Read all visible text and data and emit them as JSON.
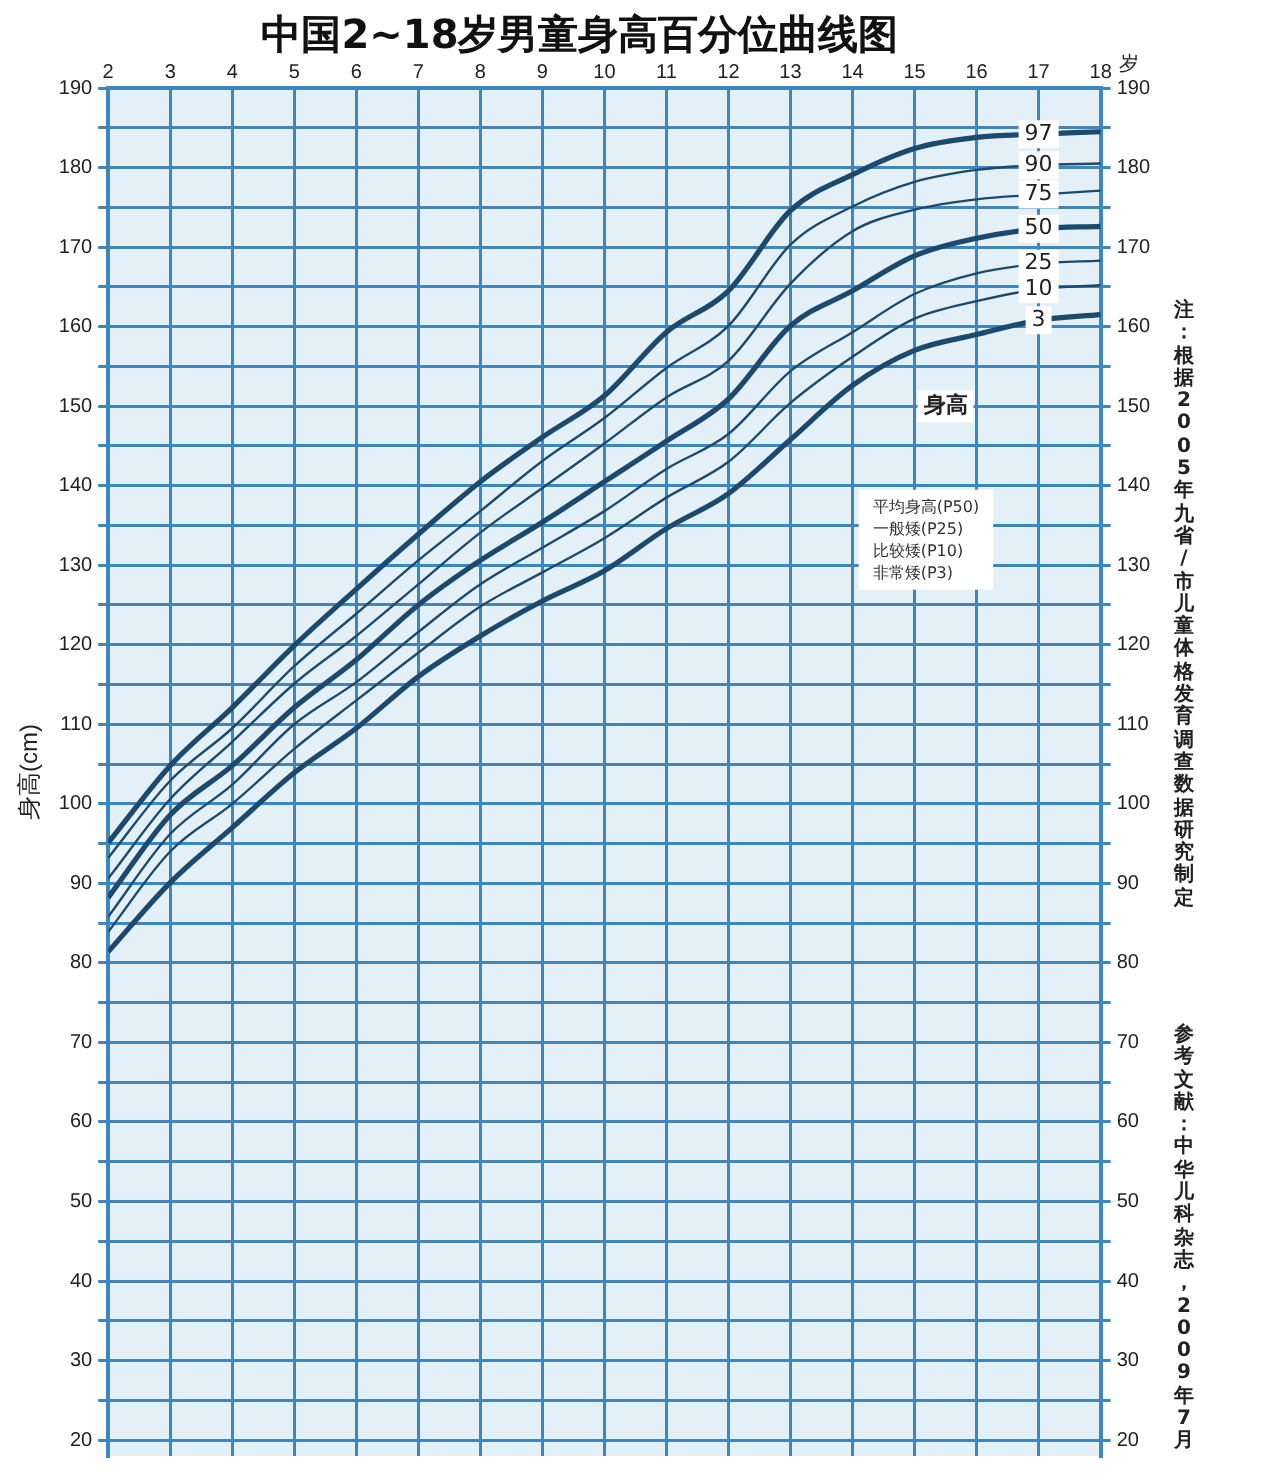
{
  "chart_data": {
    "type": "line",
    "title": "中国2~18岁男童身高百分位曲线图",
    "xlabel": "岁",
    "ylabel": "身高(cm)",
    "x": [
      2,
      3,
      4,
      5,
      6,
      7,
      8,
      9,
      10,
      11,
      12,
      13,
      14,
      15,
      16,
      17,
      18
    ],
    "xlim": [
      2,
      18
    ],
    "xticks": [
      2,
      3,
      4,
      5,
      6,
      7,
      8,
      9,
      10,
      11,
      12,
      13,
      14,
      15,
      16,
      17,
      18
    ],
    "ylim": [
      18,
      190
    ],
    "yticks": [
      20,
      {
        "value": 25,
        "label": null
      },
      30,
      {
        "value": 35,
        "label": null
      },
      40,
      {
        "value": 45,
        "label": null
      },
      50,
      {
        "value": 55,
        "label": null
      },
      60,
      {
        "value": 65,
        "label": null
      },
      70,
      {
        "value": 75,
        "label": null
      },
      80,
      {
        "value": 85,
        "label": null
      },
      90,
      {
        "value": 95,
        "label": null
      },
      100,
      {
        "value": 105,
        "label": null
      },
      110,
      {
        "value": 115,
        "label": null
      },
      120,
      {
        "value": 125,
        "label": null
      },
      130,
      {
        "value": 135,
        "label": null
      },
      140,
      {
        "value": 145,
        "label": null
      },
      150,
      {
        "value": 155,
        "label": null
      },
      160,
      {
        "value": 165,
        "label": null
      },
      170,
      {
        "value": 175,
        "label": null
      },
      180,
      {
        "value": 185,
        "label": null
      },
      190
    ],
    "y2lim": [
      18,
      190
    ],
    "y2ticks": [
      20,
      {
        "value": 25,
        "label": null
      },
      30,
      {
        "value": 35,
        "label": null
      },
      40,
      {
        "value": 45,
        "label": null
      },
      50,
      {
        "value": 55,
        "label": null
      },
      60,
      {
        "value": 65,
        "label": null
      },
      70,
      {
        "value": 75,
        "label": null
      },
      80,
      {
        "value": 85,
        "label": null
      },
      90,
      {
        "value": 95,
        "label": null
      },
      100,
      {
        "value": 105,
        "label": null
      },
      110,
      {
        "value": 115,
        "label": null
      },
      120,
      {
        "value": 125,
        "label": null
      },
      130,
      {
        "value": 135,
        "label": null
      },
      140,
      {
        "value": 145,
        "label": null
      },
      150,
      {
        "value": 155,
        "label": null
      },
      160,
      {
        "value": 165,
        "label": null
      },
      170,
      {
        "value": 175,
        "label": null
      },
      180,
      {
        "value": 185,
        "label": null
      },
      190
    ],
    "grid": true,
    "legend": false,
    "marker": "none",
    "line_style": "solid",
    "series": [
      {
        "name": "97",
        "color": "#1c4a6e",
        "values": [
          95.1,
          104.8,
          112.1,
          119.9,
          127.0,
          133.9,
          140.5,
          146.1,
          151.3,
          159.3,
          164.5,
          174.6,
          179.1,
          182.4,
          183.8,
          184.2,
          184.5
        ]
      },
      {
        "name": "90",
        "color": "#1c4a6e",
        "values": [
          93.2,
          102.9,
          109.5,
          117.3,
          123.9,
          130.6,
          136.8,
          143.1,
          148.5,
          154.8,
          160.1,
          170.3,
          175.1,
          178.2,
          179.7,
          180.3,
          180.5
        ]
      },
      {
        "name": "75",
        "color": "#1c4a6e",
        "values": [
          90.6,
          100.6,
          107.8,
          115.1,
          121.1,
          127.6,
          134.1,
          139.7,
          145.3,
          151.1,
          155.7,
          165.4,
          172.0,
          174.7,
          176.0,
          176.6,
          177.1
        ]
      },
      {
        "name": "50",
        "color": "#1c4a6e",
        "values": [
          88.2,
          98.6,
          104.8,
          112.1,
          118.1,
          125.0,
          130.6,
          135.4,
          140.5,
          145.6,
          150.9,
          160.1,
          164.5,
          168.9,
          171.1,
          172.3,
          172.6
        ]
      },
      {
        "name": "25",
        "color": "#1c4a6e",
        "values": [
          85.8,
          96.2,
          102.4,
          110.0,
          115.3,
          121.6,
          127.6,
          132.2,
          136.8,
          142.1,
          146.5,
          154.4,
          159.3,
          164.1,
          166.7,
          167.9,
          168.3
        ]
      },
      {
        "name": "10",
        "color": "#1c4a6e",
        "values": [
          83.9,
          94.0,
          100.0,
          106.9,
          113.0,
          119.0,
          124.8,
          129.1,
          133.4,
          138.5,
          143.0,
          150.4,
          156.2,
          161.0,
          163.2,
          164.7,
          165.2
        ]
      },
      {
        "name": "3",
        "color": "#1c4a6e",
        "values": [
          81.4,
          90.1,
          97.0,
          103.9,
          109.5,
          116.0,
          121.1,
          125.5,
          129.3,
          134.6,
          139.0,
          145.8,
          152.6,
          157.0,
          159.0,
          160.8,
          161.5
        ]
      }
    ],
    "annotations": [
      {
        "text": "身高",
        "x": 15.5,
        "y": 150
      },
      "平均身高(P50)\n一般矮(P25)\n比较矮(P10)\n非常矮(P3)",
      "注：根据2005年九省/市儿童体格发育调查数据研究制定",
      "参考文献：中华儿科杂志，2009年7月"
    ]
  }
}
